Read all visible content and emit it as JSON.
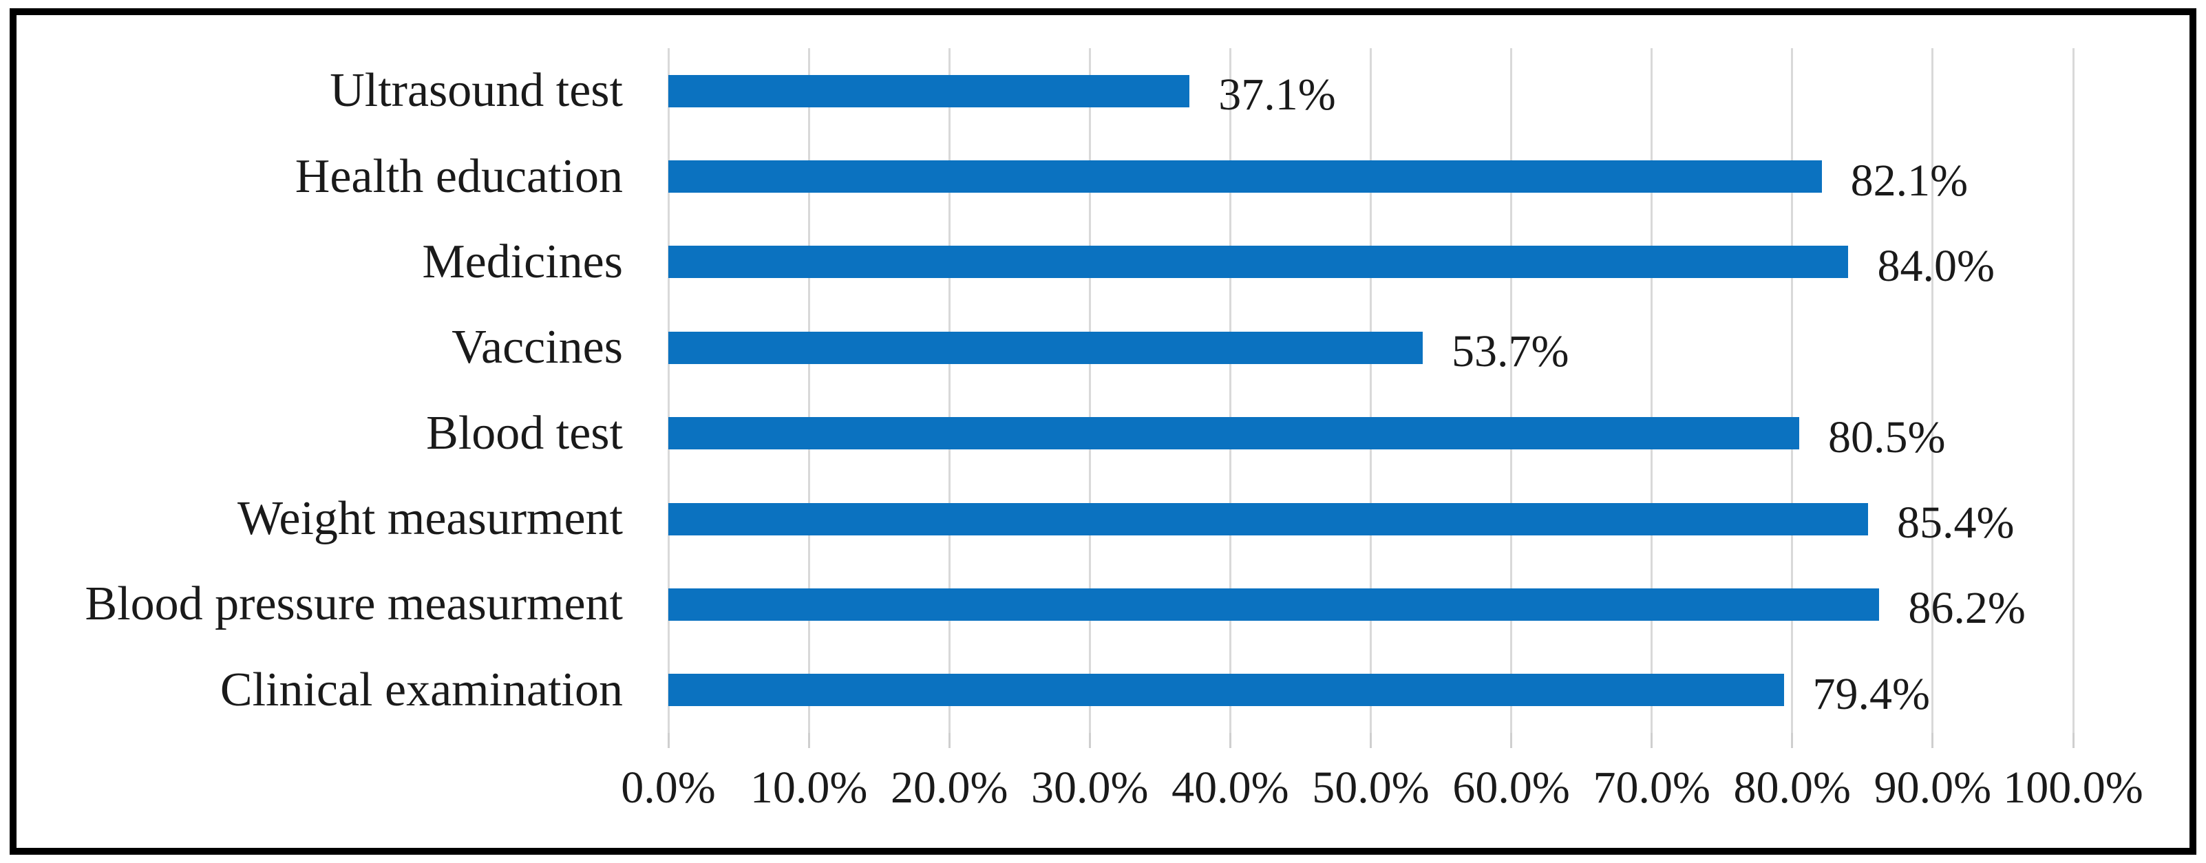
{
  "figure": {
    "background": "#ffffff",
    "border_color": "#000000"
  },
  "chart_data": {
    "type": "bar",
    "orientation": "horizontal",
    "title": "",
    "xlabel": "",
    "ylabel": "",
    "categories": [
      "Ultrasound test",
      "Health education",
      "Medicines",
      "Vaccines",
      "Blood test",
      "Weight measurment",
      "Blood pressure measurment",
      "Clinical examination"
    ],
    "values": [
      37.1,
      82.1,
      84.0,
      53.7,
      80.5,
      85.4,
      86.2,
      79.4
    ],
    "data_labels": [
      "37.1%",
      "82.1%",
      "84.0%",
      "53.7%",
      "80.5%",
      "85.4%",
      "86.2%",
      "79.4%"
    ],
    "x_axis": {
      "min": 0,
      "max": 100,
      "tick_labels": [
        "0.0%",
        "10.0%",
        "20.0%",
        "30.0%",
        "40.0%",
        "50.0%",
        "60.0%",
        "70.0%",
        "80.0%",
        "90.0%",
        "100.0%"
      ]
    },
    "grid": true,
    "legend": "none",
    "colors": {
      "bar": "#0b72c0",
      "gridline": "#d9d9d9",
      "tick_line": "#cfcfcf",
      "text": "#1a1a1a"
    }
  }
}
